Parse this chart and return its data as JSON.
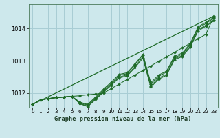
{
  "bg_color": "#cde8ec",
  "grid_color": "#a8cdd4",
  "line_color": "#1e6b28",
  "title": "Graphe pression niveau de la mer (hPa)",
  "xlim": [
    -0.5,
    23.5
  ],
  "ylim": [
    1011.55,
    1014.75
  ],
  "yticks": [
    1012,
    1013,
    1014
  ],
  "xticks": [
    0,
    1,
    2,
    3,
    4,
    5,
    6,
    7,
    8,
    9,
    10,
    11,
    12,
    13,
    14,
    15,
    16,
    17,
    18,
    19,
    20,
    21,
    22,
    23
  ],
  "series": [
    [
      1011.65,
      1011.78,
      1011.83,
      1011.86,
      1011.88,
      1011.9,
      1011.92,
      1011.95,
      1011.97,
      1012.0,
      1012.14,
      1012.28,
      1012.42,
      1012.56,
      1012.7,
      1012.84,
      1012.98,
      1013.12,
      1013.26,
      1013.4,
      1013.54,
      1013.68,
      1013.82,
      1014.38
    ],
    [
      1011.65,
      1011.79,
      1011.83,
      1011.86,
      1011.88,
      1011.9,
      1011.7,
      1011.63,
      1011.85,
      1012.08,
      1012.3,
      1012.55,
      1012.6,
      1012.88,
      1013.18,
      1012.28,
      1012.52,
      1012.65,
      1013.1,
      1013.2,
      1013.5,
      1014.02,
      1014.15,
      1014.32
    ],
    [
      1011.65,
      1011.79,
      1011.83,
      1011.86,
      1011.88,
      1011.9,
      1011.68,
      1011.6,
      1011.82,
      1012.05,
      1012.27,
      1012.5,
      1012.56,
      1012.82,
      1013.12,
      1012.22,
      1012.47,
      1012.58,
      1013.06,
      1013.16,
      1013.45,
      1013.96,
      1014.1,
      1014.26
    ],
    [
      1011.65,
      1011.79,
      1011.83,
      1011.86,
      1011.88,
      1011.9,
      1011.67,
      1011.58,
      1011.8,
      1012.03,
      1012.24,
      1012.47,
      1012.53,
      1012.79,
      1013.08,
      1012.18,
      1012.43,
      1012.55,
      1013.03,
      1013.13,
      1013.42,
      1013.92,
      1014.07,
      1014.23
    ],
    [
      1011.65,
      1011.79,
      1011.83,
      1011.86,
      1011.88,
      1011.9,
      1011.72,
      1011.65,
      1011.88,
      1012.12,
      1012.34,
      1012.58,
      1012.63,
      1012.9,
      1013.2,
      1012.32,
      1012.56,
      1012.68,
      1013.14,
      1013.24,
      1013.53,
      1014.05,
      1014.19,
      1014.35
    ]
  ]
}
